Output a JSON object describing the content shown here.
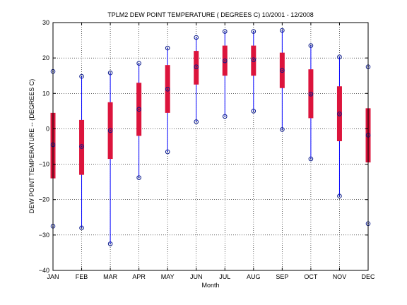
{
  "chart_data": {
    "type": "box",
    "title": "TPLM2  DEW POINT TEMPERATURE ( DEGREES C) 10/2001 - 12/2008",
    "xlabel": "Month",
    "ylabel": "DEW POINT TEMPERATURE -- (DEGREES C)",
    "ylim": [
      -40,
      30
    ],
    "yticks": [
      -40,
      -30,
      -20,
      -10,
      0,
      10,
      20,
      30
    ],
    "grid": true,
    "categories": [
      "JAN",
      "FEB",
      "MAR",
      "APR",
      "MAY",
      "JUN",
      "JUL",
      "AUG",
      "SEP",
      "OCT",
      "NOV",
      "DEC"
    ],
    "min": [
      -27.5,
      -28.0,
      -32.5,
      -13.8,
      -6.5,
      2.0,
      3.5,
      5.0,
      -0.2,
      -8.5,
      -19.0,
      -26.8
    ],
    "q1": [
      -14.0,
      -13.0,
      -8.5,
      -2.0,
      4.5,
      12.5,
      15.0,
      15.0,
      11.5,
      3.0,
      -3.5,
      -9.5
    ],
    "median": [
      -4.5,
      -5.0,
      -0.5,
      5.5,
      11.2,
      17.5,
      19.2,
      19.5,
      16.5,
      9.8,
      4.2,
      -1.8
    ],
    "q3": [
      4.5,
      2.5,
      7.5,
      13.0,
      18.0,
      22.0,
      23.5,
      23.5,
      21.5,
      16.8,
      12.0,
      5.8
    ],
    "max": [
      16.2,
      14.8,
      15.8,
      18.5,
      22.8,
      25.8,
      27.5,
      27.5,
      27.8,
      23.5,
      20.3,
      17.5
    ],
    "colors": {
      "whisker": "#0000ff",
      "box": "#dc143c",
      "marker": "#0a1a8a",
      "grid": "#000000"
    }
  }
}
